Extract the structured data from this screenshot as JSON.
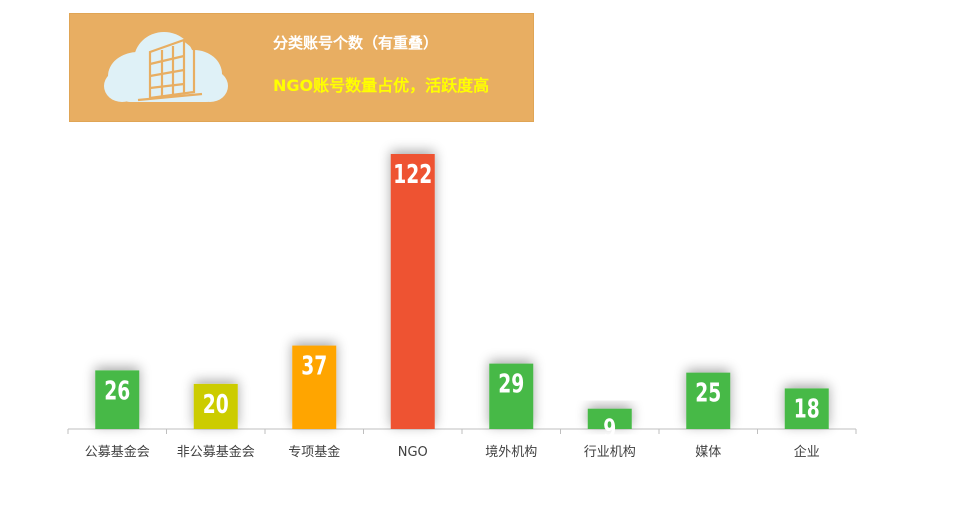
{
  "banner": {
    "title": "分类账号个数（有重叠）",
    "subtitle": "NGO账号数量占优，活跃度高",
    "icon": "building-cloud-icon",
    "background_color": "#e8ae62",
    "title_color": "#ffffff",
    "subtitle_color": "#ffff00"
  },
  "chart_data": {
    "type": "bar",
    "categories": [
      "公募基金会",
      "非公募基金会",
      "专项基金",
      "NGO",
      "境外机构",
      "行业机构",
      "媒体",
      "企业"
    ],
    "values": [
      26,
      20,
      37,
      122,
      29,
      9,
      25,
      18
    ],
    "colors": [
      "#46b946",
      "#cccc00",
      "#ffa500",
      "#ee5232",
      "#46b946",
      "#46b946",
      "#46b946",
      "#46b946"
    ],
    "data_labels": true,
    "ylim": [
      0,
      122
    ],
    "grid": false,
    "legend": "none"
  }
}
